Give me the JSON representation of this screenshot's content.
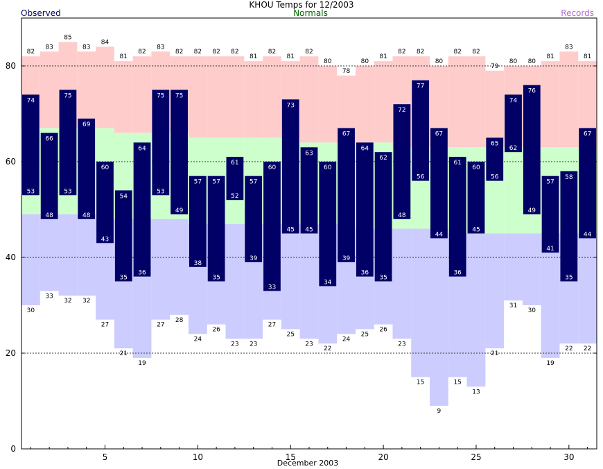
{
  "chart_data": {
    "type": "bar",
    "title": "KHOU Temps for 12/2003",
    "xlabel": "December 2003",
    "legend": {
      "observed": "Observed",
      "normals": "Normals",
      "records": "Records"
    },
    "colors": {
      "observed": "#000066",
      "observed_text": "#000066",
      "normals_text": "#006400",
      "records_text": "#b36bd9",
      "record_high_band": "#ffcccc",
      "normal_band": "#ccffcc",
      "record_low_band": "#ccccff",
      "observed_label": "#ffffff",
      "record_label": "#000000"
    },
    "xlim": [
      0.5,
      31.5
    ],
    "ylim": [
      0,
      90
    ],
    "x_ticks": [
      5,
      10,
      15,
      20,
      25,
      30
    ],
    "y_ticks": [
      0,
      20,
      40,
      60,
      80
    ],
    "gridlines_y": [
      20,
      40,
      60,
      80
    ],
    "days": [
      1,
      2,
      3,
      4,
      5,
      6,
      7,
      8,
      9,
      10,
      11,
      12,
      13,
      14,
      15,
      16,
      17,
      18,
      19,
      20,
      21,
      22,
      23,
      24,
      25,
      26,
      27,
      28,
      29,
      30,
      31
    ],
    "series": [
      {
        "name": "Observed High",
        "values": [
          74,
          66,
          75,
          69,
          60,
          54,
          64,
          75,
          75,
          57,
          57,
          61,
          57,
          60,
          73,
          63,
          60,
          67,
          64,
          62,
          72,
          77,
          67,
          61,
          60,
          65,
          74,
          76,
          57,
          58,
          67
        ]
      },
      {
        "name": "Observed Low",
        "values": [
          53,
          48,
          53,
          48,
          43,
          35,
          36,
          53,
          49,
          38,
          35,
          52,
          39,
          33,
          45,
          45,
          34,
          39,
          36,
          35,
          48,
          56,
          44,
          36,
          45,
          56,
          62,
          49,
          41,
          35,
          44
        ]
      },
      {
        "name": "Record High",
        "values": [
          82,
          83,
          85,
          83,
          84,
          81,
          82,
          83,
          82,
          82,
          82,
          82,
          81,
          82,
          81,
          82,
          80,
          78,
          80,
          81,
          82,
          82,
          80,
          82,
          82,
          79,
          80,
          80,
          81,
          83,
          81
        ]
      },
      {
        "name": "Record Low",
        "values": [
          30,
          33,
          32,
          32,
          27,
          21,
          19,
          27,
          28,
          24,
          26,
          23,
          23,
          27,
          25,
          23,
          22,
          24,
          25,
          26,
          23,
          15,
          9,
          15,
          13,
          21,
          31,
          30,
          19,
          22,
          22
        ]
      },
      {
        "name": "Normal High",
        "values": [
          67,
          67,
          67,
          67,
          67,
          66,
          66,
          66,
          66,
          65,
          65,
          65,
          65,
          65,
          65,
          64,
          64,
          64,
          64,
          64,
          63,
          63,
          63,
          63,
          63,
          63,
          63,
          63,
          63,
          63,
          63
        ]
      },
      {
        "name": "Normal Low",
        "values": [
          49,
          49,
          49,
          49,
          48,
          48,
          48,
          48,
          48,
          47,
          47,
          47,
          47,
          47,
          47,
          47,
          47,
          47,
          46,
          46,
          46,
          46,
          46,
          45,
          45,
          45,
          45,
          45,
          45,
          45,
          45
        ]
      }
    ]
  }
}
